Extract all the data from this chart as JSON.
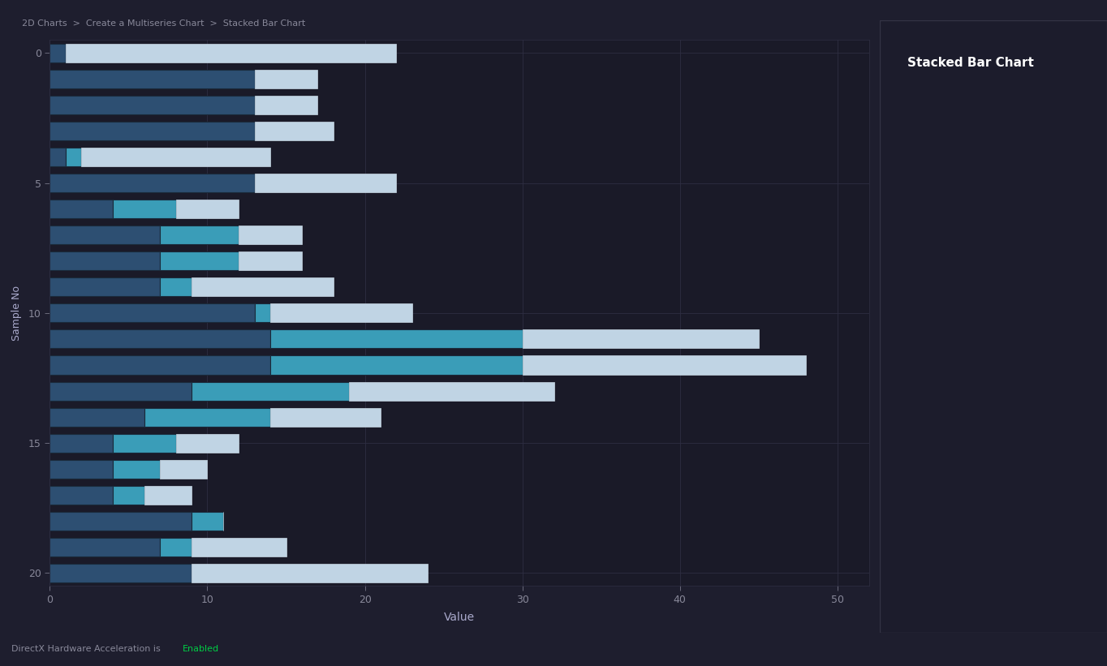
{
  "title": "Stacked Bar Chart",
  "xlabel": "Value",
  "ylabel": "Sample No",
  "bg_color": "#1e1e2e",
  "plot_bg_color": "#1a1a28",
  "grid_color": "#2e2e42",
  "tick_color": "#888899",
  "label_color": "#aaaacc",
  "xlim": [
    0,
    52
  ],
  "ylim": [
    -0.5,
    20.5
  ],
  "xticks": [
    0,
    10,
    20,
    30,
    40,
    50
  ],
  "yticks": [
    0,
    5,
    10,
    15,
    20
  ],
  "s1_color": "#2d4f72",
  "s2_color": "#3a9db8",
  "s3_color": "#c0d4e4",
  "bar_height": 0.72,
  "series1": [
    1,
    13,
    13,
    13,
    1,
    13,
    4,
    7,
    7,
    7,
    13,
    14,
    14,
    9,
    6,
    4,
    4,
    4,
    9,
    7,
    9
  ],
  "series2": [
    0,
    0,
    0,
    0,
    1,
    0,
    4,
    5,
    5,
    2,
    1,
    16,
    16,
    10,
    8,
    4,
    3,
    2,
    2,
    2,
    0
  ],
  "series3": [
    21,
    4,
    4,
    5,
    12,
    9,
    4,
    4,
    4,
    9,
    9,
    15,
    18,
    13,
    7,
    4,
    3,
    3,
    0,
    6,
    15
  ]
}
